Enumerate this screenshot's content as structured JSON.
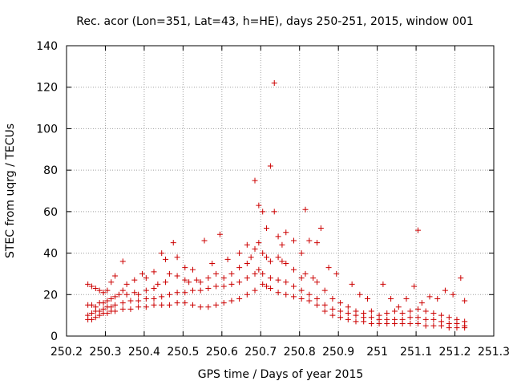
{
  "chart_data": {
    "type": "scatter",
    "title": "Rec. acor (Lon=351, Lat=43, h=HE), days 250-251, 2015, window 001",
    "xlabel": "GPS time / Days of year 2015",
    "ylabel": "STEC from uqrg / TECUs",
    "xlim": [
      250.2,
      251.3
    ],
    "ylim": [
      0,
      140
    ],
    "xticks": [
      250.2,
      250.3,
      250.4,
      250.5,
      250.6,
      250.7,
      250.8,
      250.9,
      251.0,
      251.1,
      251.2,
      251.3
    ],
    "xtick_labels": [
      "250.2",
      "250.3",
      "250.4",
      "250.5",
      "250.6",
      "250.7",
      "250.8",
      "250.9",
      "251",
      "251.1",
      "251.2",
      "251.3"
    ],
    "yticks": [
      0,
      20,
      40,
      60,
      80,
      100,
      120,
      140
    ],
    "ytick_labels": [
      "0",
      "20",
      "40",
      "60",
      "80",
      "100",
      "120",
      "140"
    ],
    "grid": true,
    "marker": "+",
    "color": "#cc0000",
    "series": [
      {
        "name": "STEC",
        "points": [
          [
            250.255,
            25
          ],
          [
            250.265,
            24
          ],
          [
            250.275,
            23
          ],
          [
            250.285,
            22
          ],
          [
            250.295,
            21
          ],
          [
            250.305,
            22
          ],
          [
            250.315,
            26
          ],
          [
            250.325,
            29
          ],
          [
            250.345,
            36
          ],
          [
            250.355,
            25
          ],
          [
            250.375,
            27
          ],
          [
            250.395,
            30
          ],
          [
            250.405,
            28
          ],
          [
            250.425,
            31
          ],
          [
            250.445,
            40
          ],
          [
            250.455,
            37
          ],
          [
            250.475,
            45
          ],
          [
            250.485,
            38
          ],
          [
            250.505,
            33
          ],
          [
            250.525,
            32
          ],
          [
            250.555,
            46
          ],
          [
            250.575,
            35
          ],
          [
            250.595,
            49
          ],
          [
            250.615,
            37
          ],
          [
            250.645,
            40
          ],
          [
            250.665,
            44
          ],
          [
            250.685,
            75
          ],
          [
            250.695,
            63
          ],
          [
            250.705,
            60
          ],
          [
            250.715,
            52
          ],
          [
            250.725,
            82
          ],
          [
            250.735,
            60
          ],
          [
            250.735,
            122
          ],
          [
            250.745,
            48
          ],
          [
            250.755,
            44
          ],
          [
            250.765,
            50
          ],
          [
            250.785,
            46
          ],
          [
            250.805,
            40
          ],
          [
            250.815,
            61
          ],
          [
            250.825,
            46
          ],
          [
            250.845,
            45
          ],
          [
            250.855,
            52
          ],
          [
            250.875,
            33
          ],
          [
            250.895,
            30
          ],
          [
            250.935,
            25
          ],
          [
            250.955,
            20
          ],
          [
            250.975,
            18
          ],
          [
            251.015,
            25
          ],
          [
            251.035,
            18
          ],
          [
            251.055,
            14
          ],
          [
            251.075,
            18
          ],
          [
            251.095,
            24
          ],
          [
            251.105,
            51
          ],
          [
            251.115,
            16
          ],
          [
            251.135,
            19
          ],
          [
            251.155,
            18
          ],
          [
            251.175,
            22
          ],
          [
            251.195,
            20
          ],
          [
            251.215,
            28
          ],
          [
            251.225,
            17
          ],
          [
            250.255,
            15
          ],
          [
            250.265,
            15
          ],
          [
            250.275,
            14
          ],
          [
            250.285,
            16
          ],
          [
            250.295,
            16
          ],
          [
            250.305,
            17
          ],
          [
            250.315,
            18
          ],
          [
            250.325,
            19
          ],
          [
            250.335,
            20
          ],
          [
            250.345,
            22
          ],
          [
            250.355,
            20
          ],
          [
            250.375,
            21
          ],
          [
            250.385,
            20
          ],
          [
            250.405,
            22
          ],
          [
            250.425,
            23
          ],
          [
            250.435,
            25
          ],
          [
            250.455,
            26
          ],
          [
            250.465,
            30
          ],
          [
            250.485,
            29
          ],
          [
            250.505,
            27
          ],
          [
            250.515,
            26
          ],
          [
            250.535,
            27
          ],
          [
            250.545,
            26
          ],
          [
            250.565,
            28
          ],
          [
            250.585,
            30
          ],
          [
            250.605,
            28
          ],
          [
            250.625,
            30
          ],
          [
            250.645,
            33
          ],
          [
            250.665,
            35
          ],
          [
            250.675,
            38
          ],
          [
            250.685,
            42
          ],
          [
            250.695,
            45
          ],
          [
            250.705,
            40
          ],
          [
            250.715,
            38
          ],
          [
            250.725,
            36
          ],
          [
            250.745,
            38
          ],
          [
            250.755,
            36
          ],
          [
            250.765,
            35
          ],
          [
            250.785,
            32
          ],
          [
            250.805,
            28
          ],
          [
            250.815,
            30
          ],
          [
            250.835,
            28
          ],
          [
            250.845,
            26
          ],
          [
            250.865,
            22
          ],
          [
            250.885,
            18
          ],
          [
            250.905,
            16
          ],
          [
            250.925,
            14
          ],
          [
            250.945,
            12
          ],
          [
            250.965,
            11
          ],
          [
            250.985,
            12
          ],
          [
            251.005,
            10
          ],
          [
            251.025,
            11
          ],
          [
            251.045,
            12
          ],
          [
            251.065,
            11
          ],
          [
            251.085,
            12
          ],
          [
            251.105,
            13
          ],
          [
            251.125,
            12
          ],
          [
            251.145,
            11
          ],
          [
            251.165,
            10
          ],
          [
            251.185,
            9
          ],
          [
            251.205,
            8
          ],
          [
            251.225,
            7
          ],
          [
            250.255,
            10
          ],
          [
            250.265,
            11
          ],
          [
            250.275,
            12
          ],
          [
            250.285,
            12
          ],
          [
            250.295,
            13
          ],
          [
            250.305,
            14
          ],
          [
            250.315,
            14
          ],
          [
            250.325,
            15
          ],
          [
            250.345,
            16
          ],
          [
            250.365,
            17
          ],
          [
            250.385,
            17
          ],
          [
            250.405,
            18
          ],
          [
            250.425,
            18
          ],
          [
            250.445,
            19
          ],
          [
            250.465,
            20
          ],
          [
            250.485,
            21
          ],
          [
            250.505,
            21
          ],
          [
            250.525,
            22
          ],
          [
            250.545,
            22
          ],
          [
            250.565,
            23
          ],
          [
            250.585,
            24
          ],
          [
            250.605,
            24
          ],
          [
            250.625,
            25
          ],
          [
            250.645,
            26
          ],
          [
            250.665,
            28
          ],
          [
            250.685,
            30
          ],
          [
            250.695,
            32
          ],
          [
            250.705,
            30
          ],
          [
            250.725,
            28
          ],
          [
            250.745,
            27
          ],
          [
            250.765,
            26
          ],
          [
            250.785,
            24
          ],
          [
            250.805,
            22
          ],
          [
            250.825,
            20
          ],
          [
            250.845,
            18
          ],
          [
            250.865,
            15
          ],
          [
            250.885,
            13
          ],
          [
            250.905,
            12
          ],
          [
            250.925,
            11
          ],
          [
            250.945,
            10
          ],
          [
            250.965,
            9
          ],
          [
            250.985,
            9
          ],
          [
            251.005,
            8
          ],
          [
            251.025,
            8
          ],
          [
            251.045,
            8
          ],
          [
            251.065,
            8
          ],
          [
            251.085,
            9
          ],
          [
            251.105,
            9
          ],
          [
            251.125,
            8
          ],
          [
            251.145,
            8
          ],
          [
            251.165,
            7
          ],
          [
            251.185,
            6
          ],
          [
            251.205,
            6
          ],
          [
            251.225,
            5
          ],
          [
            250.255,
            8
          ],
          [
            250.265,
            8
          ],
          [
            250.275,
            9
          ],
          [
            250.285,
            10
          ],
          [
            250.295,
            11
          ],
          [
            250.305,
            11
          ],
          [
            250.315,
            12
          ],
          [
            250.325,
            12
          ],
          [
            250.345,
            13
          ],
          [
            250.365,
            13
          ],
          [
            250.385,
            14
          ],
          [
            250.405,
            14
          ],
          [
            250.425,
            15
          ],
          [
            250.445,
            15
          ],
          [
            250.465,
            15
          ],
          [
            250.485,
            16
          ],
          [
            250.505,
            16
          ],
          [
            250.525,
            15
          ],
          [
            250.545,
            14
          ],
          [
            250.565,
            14
          ],
          [
            250.585,
            15
          ],
          [
            250.605,
            16
          ],
          [
            250.625,
            17
          ],
          [
            250.645,
            18
          ],
          [
            250.665,
            20
          ],
          [
            250.685,
            22
          ],
          [
            250.705,
            25
          ],
          [
            250.715,
            24
          ],
          [
            250.725,
            23
          ],
          [
            250.745,
            21
          ],
          [
            250.765,
            20
          ],
          [
            250.785,
            19
          ],
          [
            250.805,
            18
          ],
          [
            250.825,
            17
          ],
          [
            250.845,
            15
          ],
          [
            250.865,
            12
          ],
          [
            250.885,
            10
          ],
          [
            250.905,
            9
          ],
          [
            250.925,
            8
          ],
          [
            250.945,
            7
          ],
          [
            250.965,
            7
          ],
          [
            250.985,
            6
          ],
          [
            251.005,
            6
          ],
          [
            251.025,
            6
          ],
          [
            251.045,
            6
          ],
          [
            251.065,
            6
          ],
          [
            251.085,
            6
          ],
          [
            251.105,
            6
          ],
          [
            251.125,
            5
          ],
          [
            251.145,
            5
          ],
          [
            251.165,
            5
          ],
          [
            251.185,
            4
          ],
          [
            251.205,
            4
          ],
          [
            251.225,
            4
          ]
        ]
      }
    ]
  }
}
